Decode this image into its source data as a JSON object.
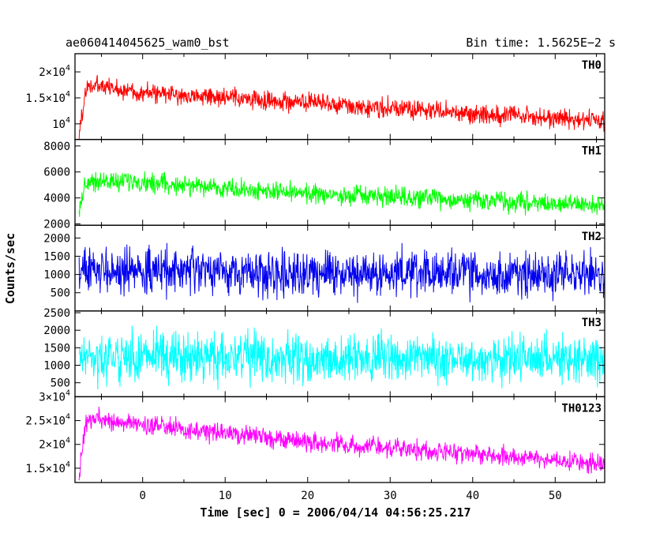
{
  "header": {
    "left_title": "ae060414045625_wam0_bst",
    "right_title": "Bin time: 1.5625E−2 s"
  },
  "axes": {
    "xlabel": "Time [sec] 0 = 2006/04/14 04:56:25.217",
    "ylabel": "Counts/sec"
  },
  "chart_data": [
    {
      "type": "line",
      "name": "TH0",
      "color": "#ff0000",
      "x_range": [
        -8.2,
        56
      ],
      "x_start": -7.7,
      "x_end": 56.0,
      "ylim": [
        7000,
        23500
      ],
      "y_ticks": [
        {
          "value": 10000,
          "label": "10",
          "exp": "4",
          "mult": ""
        },
        {
          "value": 15000,
          "label": "1.5×10",
          "exp": "4",
          "mult": ""
        },
        {
          "value": 20000,
          "label": "2×10",
          "exp": "4",
          "mult": ""
        }
      ],
      "trend": [
        [
          -7.7,
          8000
        ],
        [
          -7.0,
          15500
        ],
        [
          -6.5,
          17500
        ],
        [
          0,
          16000
        ],
        [
          20,
          14000
        ],
        [
          40,
          12000
        ],
        [
          56,
          10500
        ]
      ],
      "noise_amplitude": 2700
    },
    {
      "type": "line",
      "name": "TH1",
      "color": "#00ff00",
      "x_range": [
        -8.2,
        56
      ],
      "x_start": -7.7,
      "x_end": 56.0,
      "ylim": [
        1900,
        8500
      ],
      "y_ticks": [
        {
          "value": 2000,
          "label": "2000"
        },
        {
          "value": 4000,
          "label": "4000"
        },
        {
          "value": 6000,
          "label": "6000"
        },
        {
          "value": 8000,
          "label": "8000"
        }
      ],
      "trend": [
        [
          -7.7,
          3000
        ],
        [
          -7.0,
          5000
        ],
        [
          -6.5,
          5300
        ],
        [
          0,
          5200
        ],
        [
          20,
          4300
        ],
        [
          40,
          3800
        ],
        [
          56,
          3400
        ]
      ],
      "noise_amplitude": 1100
    },
    {
      "type": "line",
      "name": "TH2",
      "color": "#0000ee",
      "x_range": [
        -8.2,
        56
      ],
      "x_start": -7.7,
      "x_end": 56.0,
      "ylim": [
        0,
        2350
      ],
      "y_ticks": [
        {
          "value": 500,
          "label": "500"
        },
        {
          "value": 1000,
          "label": "1000"
        },
        {
          "value": 1500,
          "label": "1500"
        },
        {
          "value": 2000,
          "label": "2000"
        }
      ],
      "trend": [
        [
          -7.7,
          1100
        ],
        [
          0,
          1100
        ],
        [
          20,
          1050
        ],
        [
          40,
          1000
        ],
        [
          56,
          1000
        ]
      ],
      "noise_amplitude": 900
    },
    {
      "type": "line",
      "name": "TH3",
      "color": "#00ffff",
      "x_range": [
        -8.2,
        56
      ],
      "x_start": -7.7,
      "x_end": 56.0,
      "ylim": [
        100,
        2550
      ],
      "y_ticks": [
        {
          "value": 500,
          "label": "500"
        },
        {
          "value": 1000,
          "label": "1000"
        },
        {
          "value": 1500,
          "label": "1500"
        },
        {
          "value": 2000,
          "label": "2000"
        },
        {
          "value": 2500,
          "label": "2500"
        }
      ],
      "trend": [
        [
          -7.7,
          1200
        ],
        [
          0,
          1250
        ],
        [
          20,
          1200
        ],
        [
          40,
          1200
        ],
        [
          56,
          1150
        ]
      ],
      "noise_amplitude": 1000
    },
    {
      "type": "line",
      "name": "TH0123",
      "color": "#ff00ff",
      "x_range": [
        -8.2,
        56
      ],
      "x_start": -7.7,
      "x_end": 56.0,
      "ylim": [
        12000,
        30000
      ],
      "y_ticks": [
        {
          "value": 15000,
          "label": "1.5×10",
          "exp": "4"
        },
        {
          "value": 20000,
          "label": "2×10",
          "exp": "4"
        },
        {
          "value": 25000,
          "label": "2.5×10",
          "exp": "4"
        },
        {
          "value": 30000,
          "label": "3×10",
          "exp": "4"
        }
      ],
      "trend": [
        [
          -7.7,
          13000
        ],
        [
          -7.0,
          23000
        ],
        [
          -6.5,
          25500
        ],
        [
          0,
          24000
        ],
        [
          20,
          20500
        ],
        [
          40,
          18000
        ],
        [
          56,
          16000
        ]
      ],
      "noise_amplitude": 3000
    }
  ],
  "x_ticks": [
    {
      "value": 0,
      "label": "0"
    },
    {
      "value": 10,
      "label": "10"
    },
    {
      "value": 20,
      "label": "20"
    },
    {
      "value": 30,
      "label": "30"
    },
    {
      "value": 40,
      "label": "40"
    },
    {
      "value": 50,
      "label": "50"
    }
  ]
}
